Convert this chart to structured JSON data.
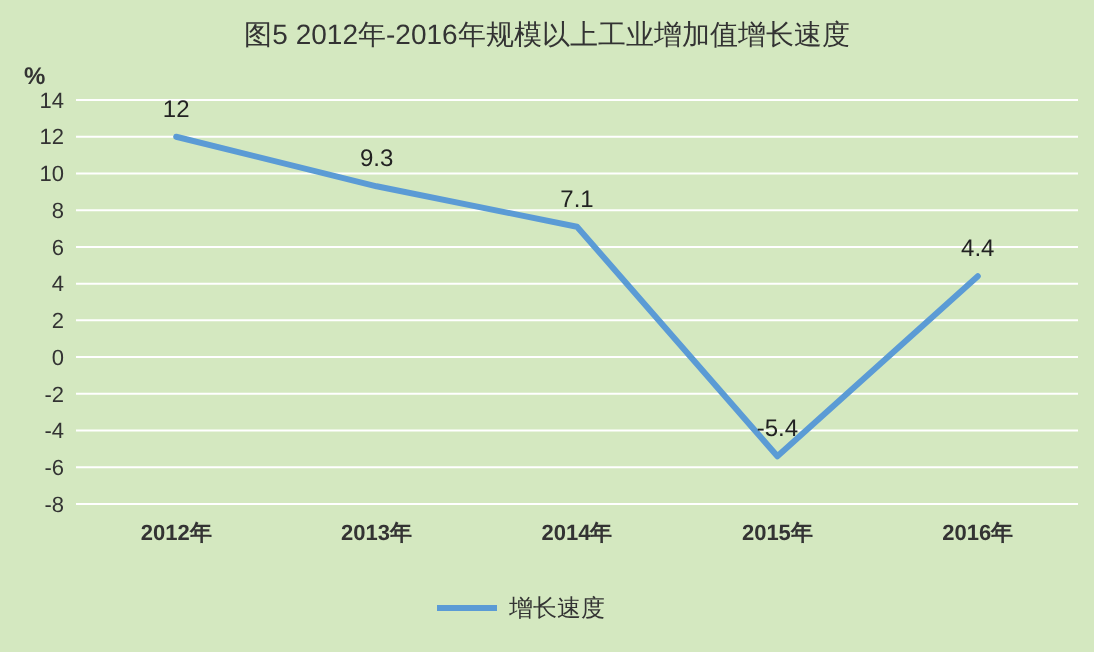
{
  "chart_data": {
    "type": "line",
    "title": "图5 2012年-2016年规模以上工业增加值增长速度",
    "ylabel": "%",
    "categories": [
      "2012年",
      "2013年",
      "2014年",
      "2015年",
      "2016年"
    ],
    "series": [
      {
        "name": "增长速度",
        "color": "#5b9bd5",
        "values": [
          12,
          9.3,
          7.1,
          -5.4,
          4.4
        ]
      }
    ],
    "ylim": [
      -8,
      14
    ],
    "yticks": [
      -8,
      -6,
      -4,
      -2,
      0,
      2,
      4,
      6,
      8,
      10,
      12,
      14
    ],
    "grid": "y",
    "legend": "bottom",
    "data_labels": true,
    "marker": "none",
    "line_style": "solid"
  }
}
